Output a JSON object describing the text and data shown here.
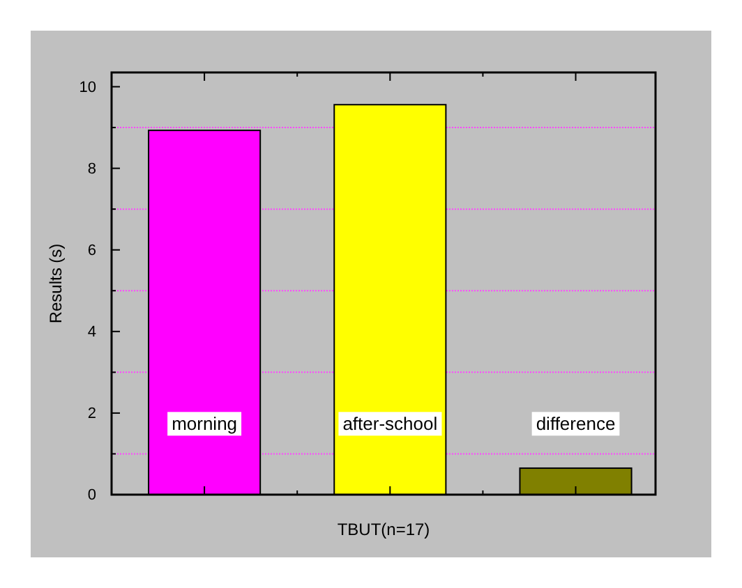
{
  "chart_data": {
    "type": "bar",
    "xlabel": "TBUT(n=17)",
    "ylabel": "Results (s)",
    "categories": [
      "morning",
      "after-school",
      "difference"
    ],
    "values": [
      8.93,
      9.56,
      0.65
    ],
    "colors": [
      "#ff00ff",
      "#ffff00",
      "#808000"
    ],
    "ylim": [
      0,
      10.35
    ],
    "yticks": [
      0,
      {
        "value": 1,
        "label": null
      },
      2,
      {
        "value": 3,
        "label": null
      },
      4,
      {
        "value": 5,
        "label": null
      },
      6,
      {
        "value": 7,
        "label": null
      },
      8,
      {
        "value": 9,
        "label": null
      },
      10
    ],
    "grid": "y"
  }
}
